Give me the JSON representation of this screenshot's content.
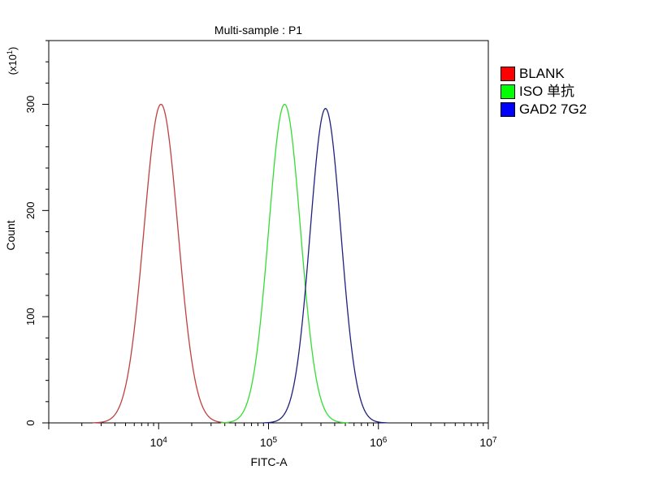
{
  "chart_data": {
    "type": "line",
    "title": "Multi-sample : P1",
    "xlabel": "FITC-A",
    "ylabel": "Count",
    "y_multiplier": "(x10",
    "y_multiplier_exp": "1",
    "y_multiplier_close": ")",
    "xscale": "log",
    "xlim": [
      1000,
      10000000
    ],
    "ylim": [
      0,
      360
    ],
    "x_ticks": [
      {
        "base": "10",
        "exp": "4",
        "value": 10000
      },
      {
        "base": "10",
        "exp": "5",
        "value": 100000
      },
      {
        "base": "10",
        "exp": "6",
        "value": 1000000
      },
      {
        "base": "10",
        "exp": "7",
        "value": 10000000
      }
    ],
    "y_ticks": [
      {
        "label": "0",
        "value": 0
      },
      {
        "label": "100",
        "value": 100
      },
      {
        "label": "200",
        "value": 200
      },
      {
        "label": "300",
        "value": 300
      }
    ],
    "grid": false,
    "legend_position": "right",
    "series": [
      {
        "name": "BLANK",
        "color": "#ff0000",
        "stroke": "#c04040",
        "peak_x": 10500,
        "peak_y": 300,
        "width_log": 0.155,
        "fill": "#ff0000"
      },
      {
        "name": "ISO 单抗",
        "color": "#00ff00",
        "stroke": "#33dd33",
        "peak_x": 140000,
        "peak_y": 300,
        "width_log": 0.145,
        "fill": "#00ff00"
      },
      {
        "name": "GAD2 7G2",
        "color": "#0000ff",
        "stroke": "#202080",
        "peak_x": 330000,
        "peak_y": 296,
        "width_log": 0.14,
        "fill": "#0000ff"
      }
    ]
  }
}
